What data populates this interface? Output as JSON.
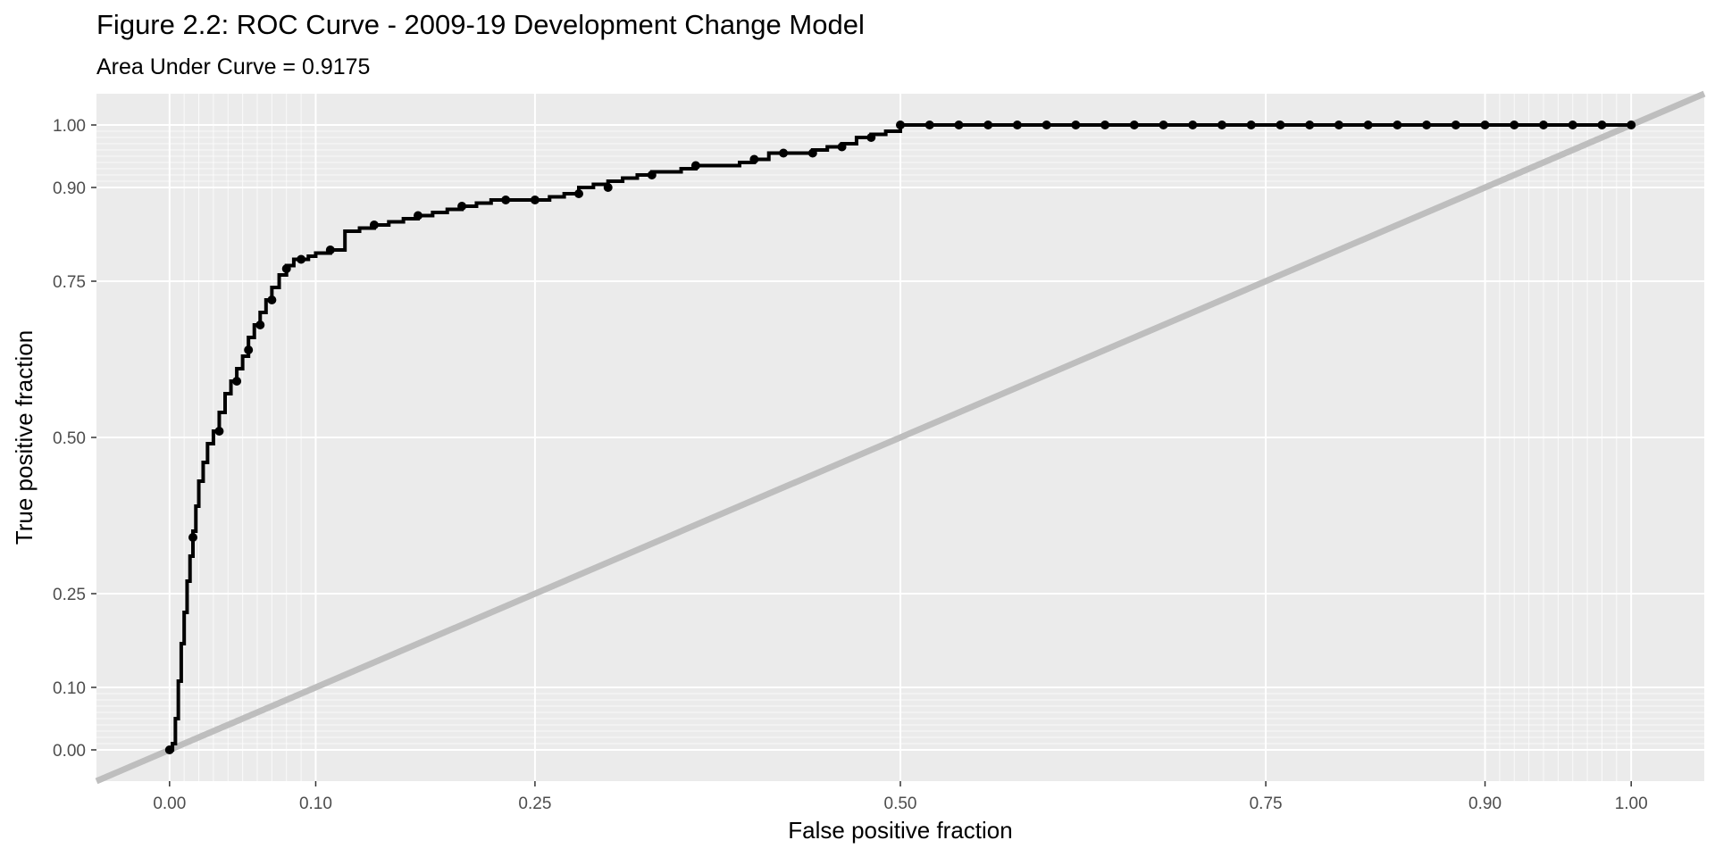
{
  "chart_data": {
    "type": "line",
    "title": "Figure 2.2: ROC Curve - 2009-19 Development Change Model",
    "subtitle": "Area Under Curve = 0.9175",
    "xlabel": "False positive fraction",
    "ylabel": "True positive fraction",
    "xlim": [
      -0.05,
      1.05
    ],
    "ylim": [
      -0.05,
      1.05
    ],
    "x_scale": "probit-style (ggplot style_roc)",
    "x_ticks": [
      0.0,
      0.1,
      0.25,
      0.5,
      0.75,
      0.9,
      1.0
    ],
    "x_tick_labels": [
      "0.00",
      "0.10",
      "0.25",
      "0.50",
      "0.75",
      "0.90",
      "1.00"
    ],
    "y_ticks": [
      0.0,
      0.1,
      0.25,
      0.5,
      0.75,
      0.9,
      1.0
    ],
    "y_tick_labels": [
      "0.00",
      "0.10",
      "0.25",
      "0.50",
      "0.75",
      "0.90",
      "1.00"
    ],
    "minor_grid": [
      0.01,
      0.02,
      0.03,
      0.04,
      0.05,
      0.06,
      0.07,
      0.08,
      0.09,
      0.91,
      0.92,
      0.93,
      0.94,
      0.95,
      0.96,
      0.97,
      0.98,
      0.99
    ],
    "grid": true,
    "legend": "none",
    "colors": {
      "panel": "#ebebeb",
      "grid": "#ffffff",
      "curve": "#000000",
      "reference": "#bebebe"
    },
    "series": [
      {
        "values_x": [
          0.0,
          0.002,
          0.004,
          0.006,
          0.008,
          0.01,
          0.012,
          0.014,
          0.016,
          0.018,
          0.02,
          0.023,
          0.026,
          0.03,
          0.034,
          0.038,
          0.042,
          0.046,
          0.05,
          0.054,
          0.058,
          0.062,
          0.066,
          0.07,
          0.075,
          0.08,
          0.085,
          0.09,
          0.095,
          0.1,
          0.11,
          0.12,
          0.13,
          0.14,
          0.15,
          0.16,
          0.17,
          0.18,
          0.19,
          0.2,
          0.21,
          0.22,
          0.23,
          0.24,
          0.25,
          0.26,
          0.27,
          0.28,
          0.29,
          0.3,
          0.31,
          0.32,
          0.33,
          0.34,
          0.35,
          0.36,
          0.37,
          0.38,
          0.39,
          0.4,
          0.41,
          0.42,
          0.43,
          0.44,
          0.45,
          0.46,
          0.47,
          0.48,
          0.49,
          0.5,
          0.52,
          0.54,
          0.56,
          0.58,
          0.6,
          0.62,
          0.64,
          0.66,
          0.68,
          0.7,
          0.72,
          0.74,
          0.76,
          0.78,
          0.8,
          0.82,
          0.84,
          0.86,
          0.88,
          0.9,
          0.92,
          0.94,
          0.96,
          0.98,
          1.0
        ],
        "values_y": [
          0.0,
          0.01,
          0.05,
          0.11,
          0.17,
          0.22,
          0.27,
          0.31,
          0.35,
          0.39,
          0.43,
          0.46,
          0.49,
          0.51,
          0.54,
          0.57,
          0.59,
          0.61,
          0.63,
          0.66,
          0.68,
          0.7,
          0.72,
          0.74,
          0.76,
          0.775,
          0.785,
          0.785,
          0.79,
          0.795,
          0.8,
          0.83,
          0.835,
          0.84,
          0.845,
          0.85,
          0.855,
          0.86,
          0.865,
          0.87,
          0.875,
          0.88,
          0.88,
          0.88,
          0.88,
          0.885,
          0.89,
          0.9,
          0.905,
          0.91,
          0.915,
          0.92,
          0.925,
          0.925,
          0.93,
          0.935,
          0.935,
          0.935,
          0.94,
          0.945,
          0.955,
          0.955,
          0.955,
          0.96,
          0.965,
          0.97,
          0.98,
          0.985,
          0.99,
          1.0,
          1.0,
          1.0,
          1.0,
          1.0,
          1.0,
          1.0,
          1.0,
          1.0,
          1.0,
          1.0,
          1.0,
          1.0,
          1.0,
          1.0,
          1.0,
          1.0,
          1.0,
          1.0,
          1.0,
          1.0,
          1.0,
          1.0,
          1.0,
          1.0,
          1.0
        ],
        "marker_x": [
          0.0,
          0.016,
          0.034,
          0.046,
          0.054,
          0.062,
          0.07,
          0.08,
          0.09,
          0.11,
          0.14,
          0.17,
          0.2,
          0.23,
          0.25,
          0.28,
          0.3,
          0.33,
          0.36,
          0.4,
          0.42,
          0.44,
          0.46,
          0.48,
          0.5,
          0.52,
          0.54,
          0.56,
          0.58,
          0.6,
          0.62,
          0.64,
          0.66,
          0.68,
          0.7,
          0.72,
          0.74,
          0.76,
          0.78,
          0.8,
          0.82,
          0.84,
          0.86,
          0.88,
          0.9,
          0.92,
          0.94,
          0.96,
          0.98,
          1.0
        ],
        "marker_y": [
          0.0,
          0.34,
          0.51,
          0.59,
          0.64,
          0.68,
          0.72,
          0.77,
          0.785,
          0.8,
          0.84,
          0.855,
          0.87,
          0.88,
          0.88,
          0.89,
          0.9,
          0.92,
          0.935,
          0.945,
          0.955,
          0.955,
          0.965,
          0.98,
          1.0,
          1.0,
          1.0,
          1.0,
          1.0,
          1.0,
          1.0,
          1.0,
          1.0,
          1.0,
          1.0,
          1.0,
          1.0,
          1.0,
          1.0,
          1.0,
          1.0,
          1.0,
          1.0,
          1.0,
          1.0,
          1.0,
          1.0,
          1.0,
          1.0,
          1.0
        ]
      }
    ],
    "reference_line": {
      "from": [
        0,
        0
      ],
      "to": [
        1,
        1
      ]
    }
  }
}
